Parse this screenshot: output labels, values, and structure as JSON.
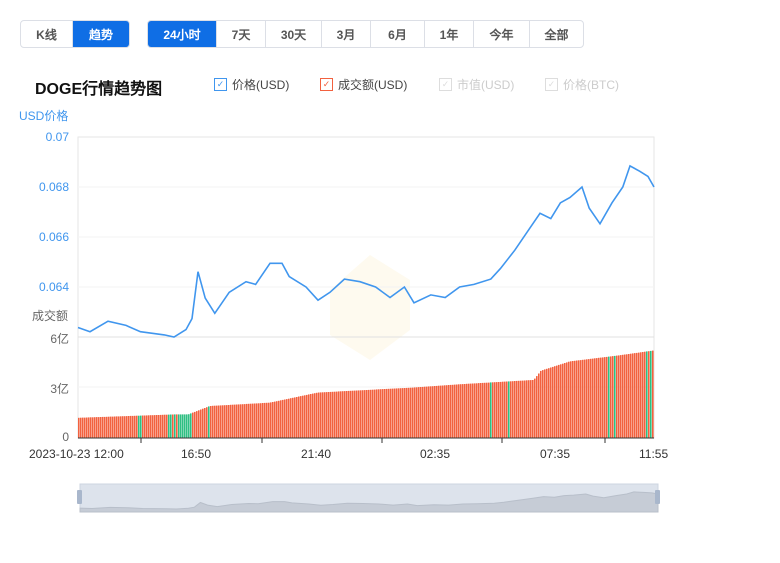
{
  "mode_tabs": [
    {
      "label": "K线",
      "active": false
    },
    {
      "label": "趋势",
      "active": true
    }
  ],
  "range_tabs": [
    {
      "label": "24小时",
      "active": true
    },
    {
      "label": "7天"
    },
    {
      "label": "30天"
    },
    {
      "label": "3月"
    },
    {
      "label": "6月"
    },
    {
      "label": "1年"
    },
    {
      "label": "今年"
    },
    {
      "label": "全部"
    }
  ],
  "title": "DOGE行情趋势图",
  "legend": [
    {
      "label": "价格(USD)",
      "checked": true,
      "color": "#4096ee"
    },
    {
      "label": "成交额(USD)",
      "checked": true,
      "color": "#f2613f"
    },
    {
      "label": "市值(USD)",
      "checked": false,
      "color": "#ccc"
    },
    {
      "label": "价格(BTC)",
      "checked": false,
      "color": "#ccc"
    }
  ],
  "chart_data": {
    "type": "line",
    "price_axis": {
      "label": "USD价格",
      "ticks": [
        "0.07",
        "0.068",
        "0.066",
        "0.064"
      ],
      "ylim": [
        0.0624,
        0.07
      ],
      "color": "#4096ee"
    },
    "volume_axis": {
      "label": "成交额",
      "ticks": [
        "6亿",
        "3亿",
        "0"
      ],
      "ylim": [
        0,
        6
      ]
    },
    "x_ticks": [
      "2023-10-23 12:00",
      "16:50",
      "21:40",
      "02:35",
      "07:35",
      "11:55"
    ],
    "price_series": {
      "name": "价格(USD)",
      "hours": [
        0,
        0.5,
        1.25,
        2,
        2.6,
        3.6,
        4,
        4.5,
        4.75,
        5,
        5.3,
        5.7,
        6.3,
        7,
        7.4,
        8,
        8.5,
        8.8,
        9.5,
        10,
        10.5,
        11.1,
        11.75,
        12.4,
        13,
        13.6,
        14,
        14.7,
        15.3,
        15.9,
        16.5,
        17.2,
        17.6,
        18.2,
        18.8,
        19.25,
        19.7,
        20.1,
        20.5,
        21,
        21.3,
        21.75,
        22.25,
        22.7,
        23,
        23.4,
        23.75,
        24
      ],
      "values": [
        0.06276,
        0.0626,
        0.063,
        0.06284,
        0.0626,
        0.06248,
        0.0624,
        0.06268,
        0.0631,
        0.06488,
        0.06388,
        0.0633,
        0.0641,
        0.0645,
        0.0644,
        0.0652,
        0.0652,
        0.0647,
        0.0643,
        0.0638,
        0.0641,
        0.0646,
        0.0645,
        0.0643,
        0.0639,
        0.0643,
        0.0637,
        0.064,
        0.0639,
        0.0643,
        0.0644,
        0.0646,
        0.065,
        0.0657,
        0.0665,
        0.0671,
        0.0669,
        0.0675,
        0.0677,
        0.0681,
        0.0673,
        0.0667,
        0.0675,
        0.0681,
        0.0689,
        0.0687,
        0.0685,
        0.0681
      ]
    },
    "volume_series": {
      "name": "成交额(USD)",
      "unit": "亿",
      "hours": [
        0,
        4,
        4.6,
        5.5,
        8,
        10,
        14,
        16,
        19,
        19.3,
        20.5,
        22.5,
        24
      ],
      "values": [
        1.2,
        1.4,
        1.4,
        1.9,
        2.1,
        2.7,
        3.0,
        3.2,
        3.45,
        4.0,
        4.55,
        4.9,
        5.2
      ],
      "up_color": "#f2613f",
      "down_color": "#2fbf83"
    }
  }
}
